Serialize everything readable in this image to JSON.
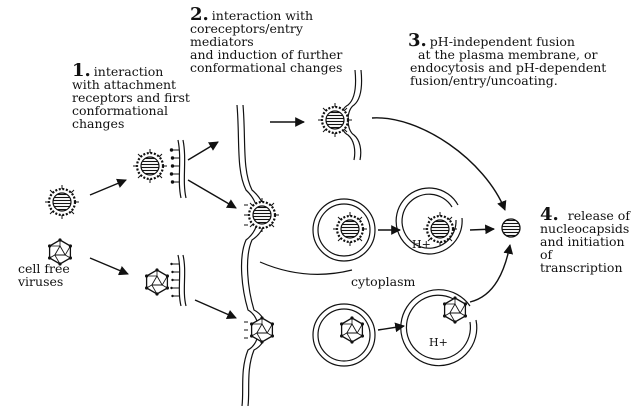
{
  "steps": [
    {
      "number": "1.",
      "first": "interaction",
      "rest": [
        "with attachment",
        "receptors and first",
        "conformational",
        "changes"
      ]
    },
    {
      "number": "2.",
      "first": "interaction with",
      "rest": [
        "coreceptors/entry mediators",
        "and induction of further",
        "conformational changes"
      ]
    },
    {
      "number": "3.",
      "first": "pH-independent fusion",
      "rest": [
        "at the plasma membrane, or",
        "endocytosis and pH-dependent",
        "fusion/entry/uncoating."
      ]
    },
    {
      "number": "4.",
      "first": "release of",
      "rest": [
        "nucleocapsids",
        "and initiation",
        "of transcription"
      ]
    }
  ],
  "labels": {
    "cell_free": [
      "cell free",
      "viruses"
    ],
    "cytoplasm": "cytoplasm",
    "h_plus_top": "H+",
    "h_plus_bottom": "H+"
  }
}
